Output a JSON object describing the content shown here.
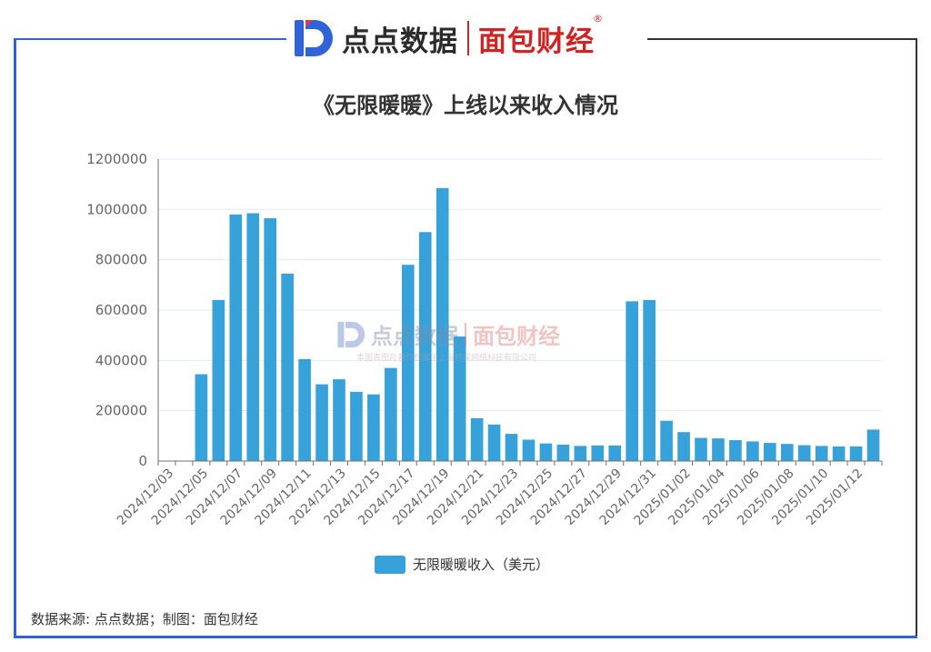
{
  "header": {
    "brand1": "点点数据",
    "brand2": "面包财经",
    "reg_mark": "®"
  },
  "watermark": {
    "brand1": "点点数据",
    "brand2": "面包财经",
    "note": "本图表图片著作权属于上海妙探网络科技有限公司"
  },
  "source": "数据来源: 点点数据；制图：面包财经",
  "colors": {
    "bar": "#37a2da",
    "frame_blue": "#2f63d6",
    "brand_red": "#d32222"
  },
  "chart_data": {
    "type": "bar",
    "title": "《无限暖暖》上线以来收入情况",
    "xlabel": "",
    "ylabel": "",
    "ylim": [
      0,
      1200000
    ],
    "yticks": [
      "0",
      "200000",
      "400000",
      "600000",
      "800000",
      "1000000",
      "1200000"
    ],
    "yticks_values": [
      0,
      200000,
      400000,
      600000,
      800000,
      1000000,
      1200000
    ],
    "grid": true,
    "legend_position": "bottom",
    "categories": [
      "2024/12/03",
      "2024/12/04",
      "2024/12/05",
      "2024/12/06",
      "2024/12/07",
      "2024/12/08",
      "2024/12/09",
      "2024/12/10",
      "2024/12/11",
      "2024/12/12",
      "2024/12/13",
      "2024/12/14",
      "2024/12/15",
      "2024/12/16",
      "2024/12/17",
      "2024/12/18",
      "2024/12/19",
      "2024/12/20",
      "2024/12/21",
      "2024/12/22",
      "2024/12/23",
      "2024/12/24",
      "2024/12/25",
      "2024/12/26",
      "2024/12/27",
      "2024/12/28",
      "2024/12/29",
      "2024/12/30",
      "2024/12/31",
      "2025/01/01",
      "2025/01/02",
      "2025/01/03",
      "2025/01/04",
      "2025/01/05",
      "2025/01/06",
      "2025/01/07",
      "2025/01/08",
      "2025/01/09",
      "2025/01/10",
      "2025/01/11",
      "2025/01/12",
      "2025/01/13"
    ],
    "xtick_labels": [
      "2024/12/03",
      "2024/12/05",
      "2024/12/07",
      "2024/12/09",
      "2024/12/11",
      "2024/12/13",
      "2024/12/15",
      "2024/12/17",
      "2024/12/19",
      "2024/12/21",
      "2024/12/23",
      "2024/12/25",
      "2024/12/27",
      "2024/12/29",
      "2024/12/31",
      "2025/01/02",
      "2025/01/04",
      "2025/01/06",
      "2025/01/08",
      "2025/01/10",
      "2025/01/12"
    ],
    "series": [
      {
        "name": "无限暖暖收入（美元）",
        "values": [
          0,
          0,
          345000,
          640000,
          980000,
          985000,
          965000,
          745000,
          405000,
          305000,
          325000,
          275000,
          265000,
          370000,
          780000,
          910000,
          1085000,
          495000,
          170000,
          145000,
          108000,
          85000,
          70000,
          65000,
          60000,
          62000,
          62000,
          635000,
          640000,
          160000,
          115000,
          92000,
          90000,
          83000,
          78000,
          72000,
          68000,
          63000,
          60000,
          58000,
          58000,
          125000
        ]
      }
    ]
  }
}
